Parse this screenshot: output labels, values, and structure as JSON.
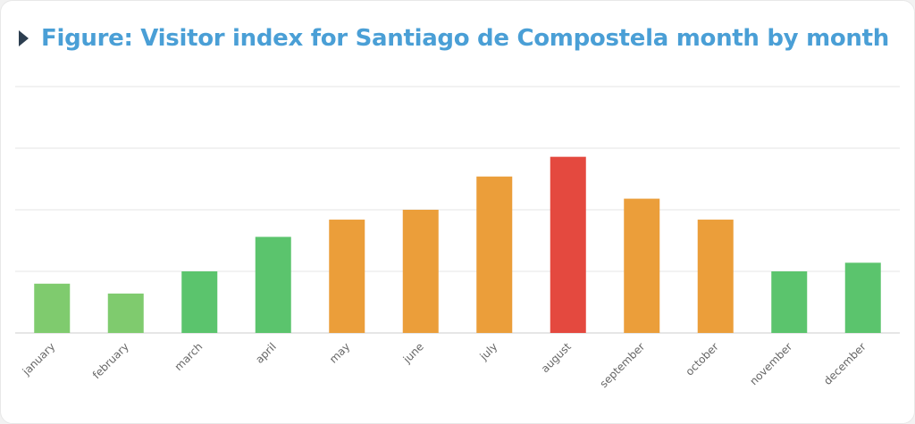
{
  "title": "Figure: Visitor index for Santiago de Compostela month by month",
  "chart_data": {
    "type": "bar",
    "title": "Figure: Visitor index for Santiago de Compostela month by month",
    "xlabel": "",
    "ylabel": "",
    "categories": [
      "january",
      "february",
      "march",
      "april",
      "may",
      "june",
      "july",
      "august",
      "september",
      "october",
      "november",
      "december"
    ],
    "values": [
      40,
      32,
      50,
      78,
      92,
      100,
      127,
      143,
      109,
      92,
      50,
      57
    ],
    "colors": [
      "#7fcb6e",
      "#7fcb6e",
      "#5bc46d",
      "#5bc46d",
      "#eb9e3a",
      "#eb9e3a",
      "#eb9e3a",
      "#e4493f",
      "#eb9e3a",
      "#eb9e3a",
      "#5bc46d",
      "#5bc46d"
    ],
    "ylim": [
      0,
      200
    ],
    "yticks": [
      0,
      50,
      100,
      150,
      200
    ],
    "grid": true,
    "legend": "none"
  }
}
